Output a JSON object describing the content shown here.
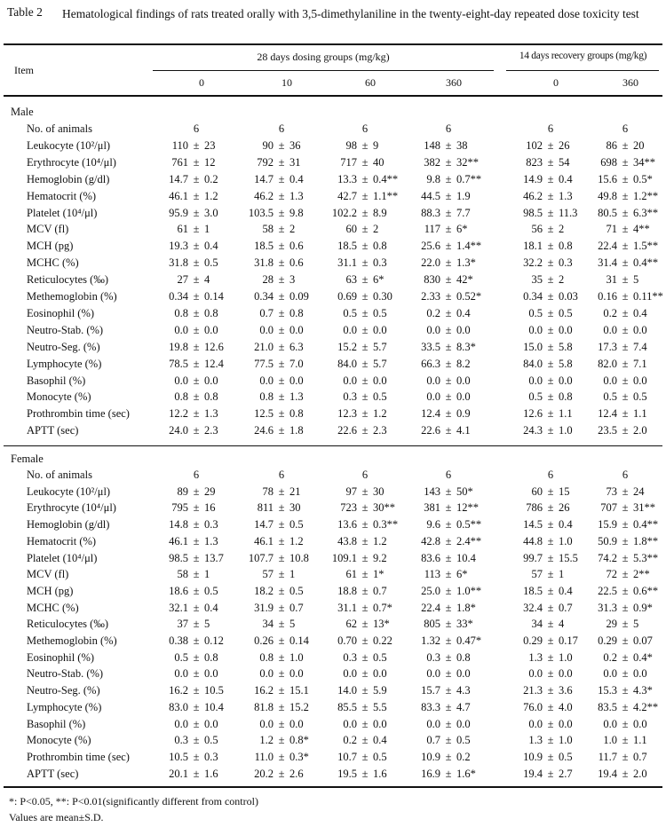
{
  "table": {
    "label": "Table 2",
    "title": "Hematological findings of rats treated orally with 3,5-dimethylaniline in the twenty-eight-day repeated dose toxicity test",
    "item_header": "Item",
    "group_headers": [
      "28 days dosing groups (mg/kg)",
      "14 days recovery groups (mg/kg)"
    ],
    "dose_headers": [
      "0",
      "10",
      "60",
      "360",
      "0",
      "360"
    ],
    "sections": [
      {
        "name": "Male",
        "rows": [
          {
            "item": "No. of animals",
            "values": [
              "6",
              "6",
              "6",
              "6",
              "6",
              "6"
            ]
          },
          {
            "item": "Leukocyte (10²/μl)",
            "values": [
              "110 ± 23",
              "90 ± 36",
              "98 ± 9",
              "148 ± 38",
              "102 ± 26",
              "86 ± 20"
            ]
          },
          {
            "item": "Erythrocyte (10⁴/μl)",
            "values": [
              "761 ± 12",
              "792 ± 31",
              "717 ± 40",
              "382 ± 32**",
              "823 ± 54",
              "698 ± 34**"
            ]
          },
          {
            "item": "Hemoglobin (g/dl)",
            "values": [
              "14.7 ± 0.2",
              "14.7 ± 0.4",
              "13.3 ± 0.4**",
              "9.8 ± 0.7**",
              "14.9 ± 0.4",
              "15.6 ± 0.5*"
            ]
          },
          {
            "item": "Hematocrit (%)",
            "values": [
              "46.1 ± 1.2",
              "46.2 ± 1.3",
              "42.7 ± 1.1**",
              "44.5 ± 1.9",
              "46.2 ± 1.3",
              "49.8 ± 1.2**"
            ]
          },
          {
            "item": "Platelet (10⁴/μl)",
            "values": [
              "95.9 ± 3.0",
              "103.5 ± 9.8",
              "102.2 ± 8.9",
              "88.3 ± 7.7",
              "98.5 ± 11.3",
              "80.5 ± 6.3**"
            ]
          },
          {
            "item": "MCV (fl)",
            "values": [
              "61 ± 1",
              "58 ± 2",
              "60 ± 2",
              "117 ± 6*",
              "56 ± 2",
              "71 ± 4**"
            ]
          },
          {
            "item": "MCH (pg)",
            "values": [
              "19.3 ± 0.4",
              "18.5 ± 0.6",
              "18.5 ± 0.8",
              "25.6 ± 1.4**",
              "18.1 ± 0.8",
              "22.4 ± 1.5**"
            ]
          },
          {
            "item": "MCHC (%)",
            "values": [
              "31.8 ± 0.5",
              "31.8 ± 0.6",
              "31.1 ± 0.3",
              "22.0 ± 1.3*",
              "32.2 ± 0.3",
              "31.4 ± 0.4**"
            ]
          },
          {
            "item": "Reticulocytes (‰)",
            "values": [
              "27 ± 4",
              "28 ± 3",
              "63 ± 6*",
              "830 ± 42*",
              "35 ± 2",
              "31 ± 5"
            ]
          },
          {
            "item": "Methemoglobin (%)",
            "values": [
              "0.34 ± 0.14",
              "0.34 ± 0.09",
              "0.69 ± 0.30",
              "2.33 ± 0.52*",
              "0.34 ± 0.03",
              "0.16 ± 0.11**"
            ]
          },
          {
            "item": "Eosinophil (%)",
            "values": [
              "0.8 ± 0.8",
              "0.7 ± 0.8",
              "0.5 ± 0.5",
              "0.2 ± 0.4",
              "0.5 ± 0.5",
              "0.2 ± 0.4"
            ]
          },
          {
            "item": "Neutro-Stab. (%)",
            "values": [
              "0.0 ± 0.0",
              "0.0 ± 0.0",
              "0.0 ± 0.0",
              "0.0 ± 0.0",
              "0.0 ± 0.0",
              "0.0 ± 0.0"
            ]
          },
          {
            "item": "Neutro-Seg. (%)",
            "values": [
              "19.8 ± 12.6",
              "21.0 ± 6.3",
              "15.2 ± 5.7",
              "33.5 ± 8.3*",
              "15.0 ± 5.8",
              "17.3 ± 7.4"
            ]
          },
          {
            "item": "Lymphocyte (%)",
            "values": [
              "78.5 ± 12.4",
              "77.5 ± 7.0",
              "84.0 ± 5.7",
              "66.3 ± 8.2",
              "84.0 ± 5.8",
              "82.0 ± 7.1"
            ]
          },
          {
            "item": "Basophil (%)",
            "values": [
              "0.0 ± 0.0",
              "0.0 ± 0.0",
              "0.0 ± 0.0",
              "0.0 ± 0.0",
              "0.0 ± 0.0",
              "0.0 ± 0.0"
            ]
          },
          {
            "item": "Monocyte (%)",
            "values": [
              "0.8 ± 0.8",
              "0.8 ± 1.3",
              "0.3 ± 0.5",
              "0.0 ± 0.0",
              "0.5 ± 0.8",
              "0.5 ± 0.5"
            ]
          },
          {
            "item": "Prothrombin time (sec)",
            "values": [
              "12.2 ± 1.3",
              "12.5 ± 0.8",
              "12.3 ± 1.2",
              "12.4 ± 0.9",
              "12.6 ± 1.1",
              "12.4 ± 1.1"
            ]
          },
          {
            "item": "APTT (sec)",
            "values": [
              "24.0 ± 2.3",
              "24.6 ± 1.8",
              "22.6 ± 2.3",
              "22.6 ± 4.1",
              "24.3 ± 1.0",
              "23.5 ± 2.0"
            ]
          }
        ]
      },
      {
        "name": "Female",
        "rows": [
          {
            "item": "No. of animals",
            "values": [
              "6",
              "6",
              "6",
              "6",
              "6",
              "6"
            ]
          },
          {
            "item": "Leukocyte (10²/μl)",
            "values": [
              "89 ± 29",
              "78 ± 21",
              "97 ± 30",
              "143 ± 50*",
              "60 ± 15",
              "73 ± 24"
            ]
          },
          {
            "item": "Erythrocyte (10⁴/μl)",
            "values": [
              "795 ± 16",
              "811 ± 30",
              "723 ± 30**",
              "381 ± 12**",
              "786 ± 26",
              "707 ± 31**"
            ]
          },
          {
            "item": "Hemoglobin (g/dl)",
            "values": [
              "14.8 ± 0.3",
              "14.7 ± 0.5",
              "13.6 ± 0.3**",
              "9.6 ± 0.5**",
              "14.5 ± 0.4",
              "15.9 ± 0.4**"
            ]
          },
          {
            "item": "Hematocrit (%)",
            "values": [
              "46.1 ± 1.3",
              "46.1 ± 1.2",
              "43.8 ± 1.2",
              "42.8 ± 2.4**",
              "44.8 ± 1.0",
              "50.9 ± 1.8**"
            ]
          },
          {
            "item": "Platelet (10⁴/μl)",
            "values": [
              "98.5 ± 13.7",
              "107.7 ± 10.8",
              "109.1 ± 9.2",
              "83.6 ± 10.4",
              "99.7 ± 15.5",
              "74.2 ± 5.3**"
            ]
          },
          {
            "item": "MCV (fl)",
            "values": [
              "58 ± 1",
              "57 ± 1",
              "61 ± 1*",
              "113 ± 6*",
              "57 ± 1",
              "72 ± 2**"
            ]
          },
          {
            "item": "MCH (pg)",
            "values": [
              "18.6 ± 0.5",
              "18.2 ± 0.5",
              "18.8 ± 0.7",
              "25.0 ± 1.0**",
              "18.5 ± 0.4",
              "22.5 ± 0.6**"
            ]
          },
          {
            "item": "MCHC (%)",
            "values": [
              "32.1 ± 0.4",
              "31.9 ± 0.7",
              "31.1 ± 0.7*",
              "22.4 ± 1.8*",
              "32.4 ± 0.7",
              "31.3 ± 0.9*"
            ]
          },
          {
            "item": "Reticulocytes (‰)",
            "values": [
              "37 ± 5",
              "34 ± 5",
              "62 ± 13*",
              "805 ± 33*",
              "34 ± 4",
              "29 ± 5"
            ]
          },
          {
            "item": "Methemoglobin (%)",
            "values": [
              "0.38 ± 0.12",
              "0.26 ± 0.14",
              "0.70 ± 0.22",
              "1.32 ± 0.47*",
              "0.29 ± 0.17",
              "0.29 ± 0.07"
            ]
          },
          {
            "item": "Eosinophil (%)",
            "values": [
              "0.5 ± 0.8",
              "0.8 ± 1.0",
              "0.3 ± 0.5",
              "0.3 ± 0.8",
              "1.3 ± 1.0",
              "0.2 ± 0.4*"
            ]
          },
          {
            "item": "Neutro-Stab. (%)",
            "values": [
              "0.0 ± 0.0",
              "0.0 ± 0.0",
              "0.0 ± 0.0",
              "0.0 ± 0.0",
              "0.0 ± 0.0",
              "0.0 ± 0.0"
            ]
          },
          {
            "item": "Neutro-Seg. (%)",
            "values": [
              "16.2 ± 10.5",
              "16.2 ± 15.1",
              "14.0 ± 5.9",
              "15.7 ± 4.3",
              "21.3 ± 3.6",
              "15.3 ± 4.3*"
            ]
          },
          {
            "item": "Lymphocyte (%)",
            "values": [
              "83.0 ± 10.4",
              "81.8 ± 15.2",
              "85.5 ± 5.5",
              "83.3 ± 4.7",
              "76.0 ± 4.0",
              "83.5 ± 4.2**"
            ]
          },
          {
            "item": "Basophil (%)",
            "values": [
              "0.0 ± 0.0",
              "0.0 ± 0.0",
              "0.0 ± 0.0",
              "0.0 ± 0.0",
              "0.0 ± 0.0",
              "0.0 ± 0.0"
            ]
          },
          {
            "item": "Monocyte (%)",
            "values": [
              "0.3 ± 0.5",
              "1.2 ± 0.8*",
              "0.2 ± 0.4",
              "0.7 ± 0.5",
              "1.3 ± 1.0",
              "1.0 ± 1.1"
            ]
          },
          {
            "item": "Prothrombin time (sec)",
            "values": [
              "10.5 ± 0.3",
              "11.0 ± 0.3*",
              "10.7 ± 0.5",
              "10.9 ± 0.2",
              "10.9 ± 0.5",
              "11.7 ± 0.7"
            ]
          },
          {
            "item": "APTT (sec)",
            "values": [
              "20.1 ± 1.6",
              "20.2 ± 2.6",
              "19.5 ± 1.6",
              "16.9 ± 1.6*",
              "19.4 ± 2.7",
              "19.4 ± 2.0"
            ]
          }
        ]
      }
    ],
    "footnotes": [
      "*: P<0.05, **: P<0.01(significantly different from control)",
      "Values are mean±S.D."
    ]
  }
}
